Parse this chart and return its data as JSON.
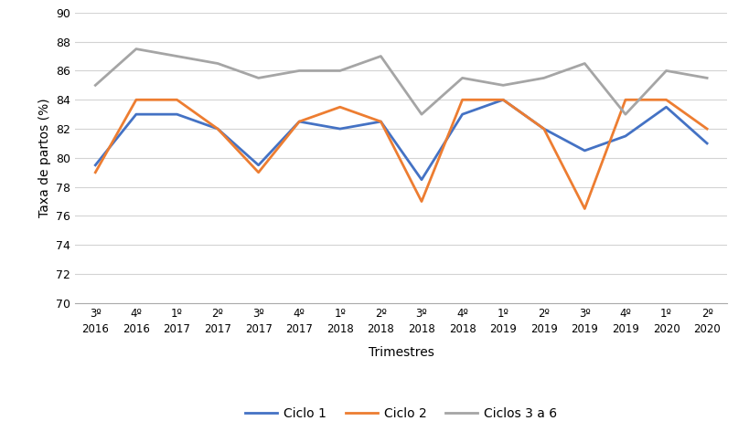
{
  "x_labels_line1": [
    "3º",
    "4º",
    "1º",
    "2º",
    "3º",
    "4º",
    "1º",
    "2º",
    "3º",
    "4º",
    "1º",
    "2º",
    "3º",
    "4º",
    "1º",
    "2º"
  ],
  "x_labels_line2": [
    "2016",
    "2016",
    "2017",
    "2017",
    "2017",
    "2017",
    "2018",
    "2018",
    "2018",
    "2018",
    "2019",
    "2019",
    "2019",
    "2019",
    "2020",
    "2020"
  ],
  "ciclo1": [
    79.5,
    83.0,
    83.0,
    82.0,
    79.5,
    82.5,
    82.0,
    82.5,
    78.5,
    83.0,
    84.0,
    82.0,
    80.5,
    81.5,
    83.5,
    81.0
  ],
  "ciclo2": [
    79.0,
    84.0,
    84.0,
    82.0,
    79.0,
    82.5,
    83.5,
    82.5,
    77.0,
    84.0,
    84.0,
    82.0,
    76.5,
    84.0,
    84.0,
    82.0
  ],
  "ciclos3a6": [
    85.0,
    87.5,
    87.0,
    86.5,
    85.5,
    86.0,
    86.0,
    87.0,
    83.0,
    85.5,
    85.0,
    85.5,
    86.5,
    83.0,
    86.0,
    85.5
  ],
  "color_ciclo1": "#4472C4",
  "color_ciclo2": "#ED7D31",
  "color_ciclos3a6": "#A5A5A5",
  "ylabel": "Taxa de partos (%)",
  "xlabel": "Trimestres",
  "ylim": [
    70,
    90
  ],
  "yticks": [
    70,
    72,
    74,
    76,
    78,
    80,
    82,
    84,
    86,
    88,
    90
  ],
  "legend_labels": [
    "Ciclo 1",
    "Ciclo 2",
    "Ciclos 3 a 6"
  ],
  "background_color": "#ffffff",
  "grid_color": "#d3d3d3"
}
